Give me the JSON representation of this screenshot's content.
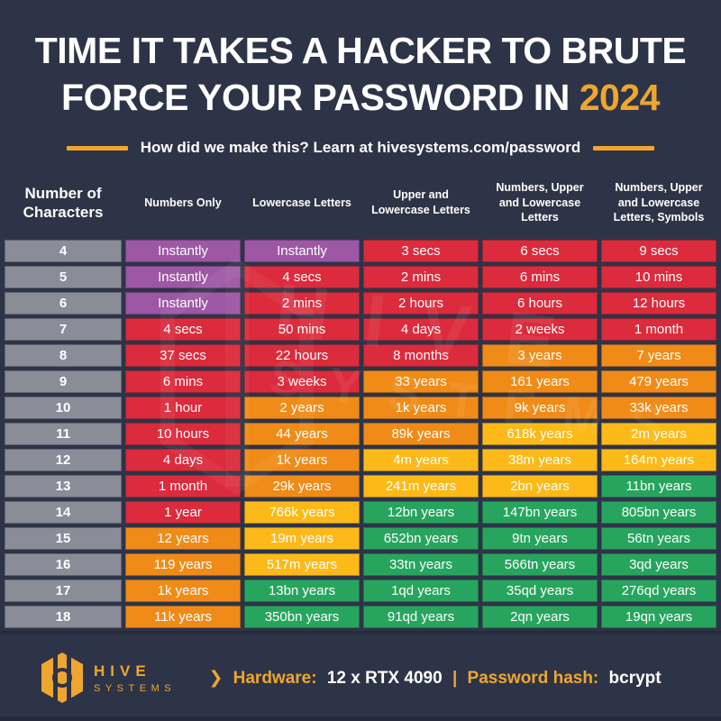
{
  "header": {
    "title_line1": "TIME IT TAKES A HACKER TO BRUTE",
    "title_line2_prefix": "FORCE YOUR PASSWORD IN",
    "title_year": "2024",
    "subtitle": "How did we make this? Learn at hivesystems.com/password"
  },
  "colors": {
    "background": "#2E3447",
    "gold": "#EFA62F",
    "gray": "#8A8D98",
    "purple": "#9D57A5",
    "red": "#DC2B3C",
    "orange": "#F08B18",
    "yellow": "#FCB918",
    "green": "#27A55E"
  },
  "chart_data": {
    "type": "table",
    "title": "TIME IT TAKES A HACKER TO BRUTE FORCE YOUR PASSWORD IN 2024",
    "columns": [
      "Number of Characters",
      "Numbers Only",
      "Lowercase Letters",
      "Upper and Lowercase Letters",
      "Numbers, Upper and Lowercase Letters",
      "Numbers, Upper and Lowercase Letters, Symbols"
    ],
    "rows": [
      [
        "4",
        "Instantly",
        "Instantly",
        "3 secs",
        "6 secs",
        "9 secs"
      ],
      [
        "5",
        "Instantly",
        "4 secs",
        "2 mins",
        "6 mins",
        "10 mins"
      ],
      [
        "6",
        "Instantly",
        "2 mins",
        "2 hours",
        "6 hours",
        "12 hours"
      ],
      [
        "7",
        "4 secs",
        "50 mins",
        "4 days",
        "2 weeks",
        "1 month"
      ],
      [
        "8",
        "37 secs",
        "22 hours",
        "8 months",
        "3 years",
        "7 years"
      ],
      [
        "9",
        "6 mins",
        "3 weeks",
        "33 years",
        "161 years",
        "479 years"
      ],
      [
        "10",
        "1 hour",
        "2 years",
        "1k years",
        "9k years",
        "33k years"
      ],
      [
        "11",
        "10 hours",
        "44 years",
        "89k years",
        "618k years",
        "2m years"
      ],
      [
        "12",
        "4 days",
        "1k years",
        "4m years",
        "38m years",
        "164m years"
      ],
      [
        "13",
        "1 month",
        "29k years",
        "241m years",
        "2bn years",
        "11bn years"
      ],
      [
        "14",
        "1 year",
        "766k years",
        "12bn years",
        "147bn years",
        "805bn years"
      ],
      [
        "15",
        "12 years",
        "19m years",
        "652bn years",
        "9tn years",
        "56tn years"
      ],
      [
        "16",
        "119 years",
        "517m years",
        "33tn years",
        "566tn years",
        "3qd years"
      ],
      [
        "17",
        "1k years",
        "13bn years",
        "1qd years",
        "35qd years",
        "276qd years"
      ],
      [
        "18",
        "11k years",
        "350bn years",
        "91qd years",
        "2qn years",
        "19qn years"
      ]
    ],
    "cell_colors": [
      [
        "gray",
        "purple",
        "purple",
        "red",
        "red",
        "red"
      ],
      [
        "gray",
        "purple",
        "red",
        "red",
        "red",
        "red"
      ],
      [
        "gray",
        "purple",
        "red",
        "red",
        "red",
        "red"
      ],
      [
        "gray",
        "red",
        "red",
        "red",
        "red",
        "red"
      ],
      [
        "gray",
        "red",
        "red",
        "red",
        "orange",
        "orange"
      ],
      [
        "gray",
        "red",
        "red",
        "orange",
        "orange",
        "orange"
      ],
      [
        "gray",
        "red",
        "orange",
        "orange",
        "orange",
        "orange"
      ],
      [
        "gray",
        "red",
        "orange",
        "orange",
        "yellow",
        "yellow"
      ],
      [
        "gray",
        "red",
        "orange",
        "yellow",
        "yellow",
        "yellow"
      ],
      [
        "gray",
        "red",
        "orange",
        "yellow",
        "yellow",
        "green"
      ],
      [
        "gray",
        "red",
        "yellow",
        "green",
        "green",
        "green"
      ],
      [
        "gray",
        "orange",
        "yellow",
        "green",
        "green",
        "green"
      ],
      [
        "gray",
        "orange",
        "yellow",
        "green",
        "green",
        "green"
      ],
      [
        "gray",
        "orange",
        "green",
        "green",
        "green",
        "green"
      ],
      [
        "gray",
        "orange",
        "green",
        "green",
        "green",
        "green"
      ]
    ]
  },
  "watermark": {
    "line1": "HIVE",
    "line2": "SYSTEMS"
  },
  "footer": {
    "brand_top": "HIVE",
    "brand_bottom": "SYSTEMS",
    "chevron": "❯",
    "hardware_label": "Hardware:",
    "hardware_value": "12 x RTX 4090",
    "separator": "|",
    "hash_label": "Password hash:",
    "hash_value": "bcrypt"
  }
}
